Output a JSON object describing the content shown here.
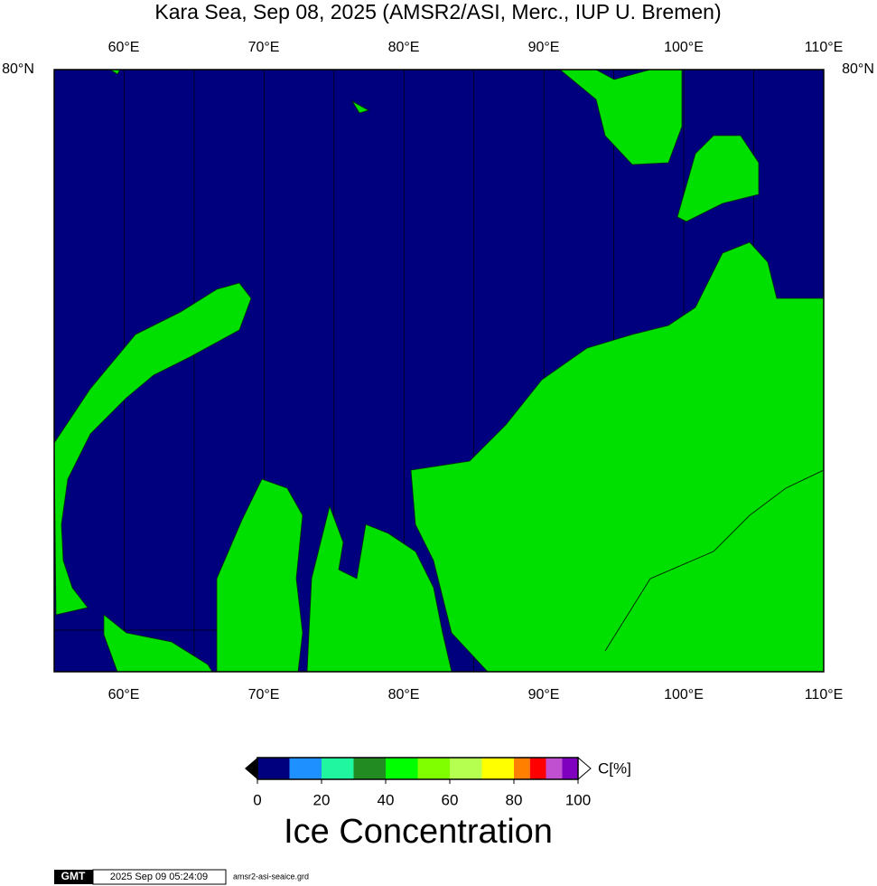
{
  "header": {
    "title": "Kara Sea, Sep 08, 2025 (AMSR2/ASI, Merc., IUP U. Bremen)"
  },
  "map": {
    "lon_labels": [
      "60°E",
      "70°E",
      "80°E",
      "90°E",
      "100°E",
      "110°E"
    ],
    "lat_label": "80°N"
  },
  "colorbar": {
    "bounds": [
      0,
      10,
      20,
      30,
      40,
      50,
      60,
      70,
      80,
      85,
      90,
      95,
      100
    ],
    "colors": [
      "#00007f",
      "#1e90ff",
      "#20f5a0",
      "#228b22",
      "#00ff00",
      "#7fff00",
      "#b4ff50",
      "#ffff00",
      "#ff8000",
      "#ff0000",
      "#c050d0",
      "#8000c0"
    ],
    "ticks": [
      0,
      20,
      40,
      60,
      80,
      100
    ],
    "unit_label": "C[%]",
    "title": "Ice Concentration"
  },
  "footer": {
    "logo": "GMT",
    "timestamp": "2025 Sep 09 05:24:09",
    "file": "amsr2-asi-seaice.grd"
  }
}
